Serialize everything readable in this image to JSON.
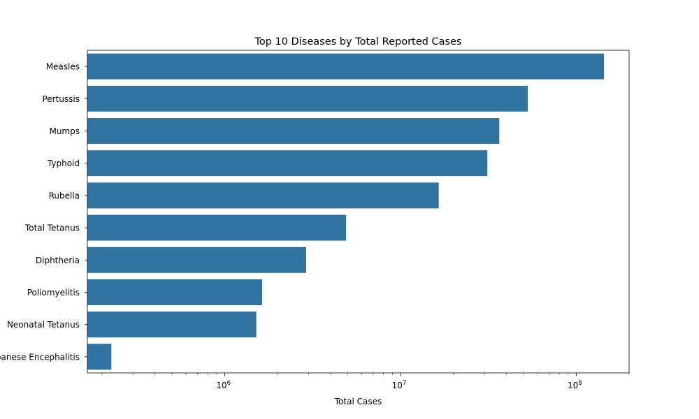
{
  "chart_data": {
    "type": "bar",
    "orientation": "horizontal",
    "title": "Top 10 Diseases by Total Reported Cases",
    "xlabel": "Total Cases",
    "ylabel": "",
    "x_scale": "log",
    "xlim": [
      165000,
      200000000
    ],
    "grid": false,
    "bar_color": "#3274a1",
    "categories": [
      "Measles",
      "Pertussis",
      "Mumps",
      "Typhoid",
      "Rubella",
      "Total Tetanus",
      "Diphtheria",
      "Poliomyelitis",
      "Neonatal Tetanus",
      "Japanese Encephalitis"
    ],
    "values": [
      144000000,
      53000000,
      36500000,
      31200000,
      16500000,
      4900000,
      2900000,
      1630000,
      1510000,
      226000
    ],
    "x_ticks": [
      {
        "value": 1000000,
        "base": "10",
        "exp": "6"
      },
      {
        "value": 10000000,
        "base": "10",
        "exp": "7"
      },
      {
        "value": 100000000,
        "base": "10",
        "exp": "8"
      }
    ]
  }
}
